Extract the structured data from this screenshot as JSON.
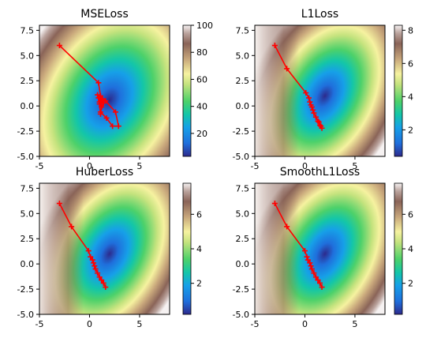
{
  "chart_data": [
    {
      "type": "heatmap",
      "title": "MSELoss",
      "xlim": [
        -5,
        8
      ],
      "ylim": [
        -5,
        8
      ],
      "xticks": [
        -5,
        0,
        5
      ],
      "yticks": [
        -5.0,
        -2.5,
        0.0,
        2.5,
        5.0,
        7.5
      ],
      "colorbar": {
        "range": [
          3,
          100
        ],
        "ticks": [
          20,
          40,
          60,
          80,
          100
        ]
      },
      "center": [
        2.0,
        0.6
      ],
      "path_color": "#ff0000",
      "path": [
        [
          -3,
          6
        ],
        [
          0.9,
          2.3
        ],
        [
          1.1,
          1.0
        ],
        [
          1.3,
          0.7
        ],
        [
          1.0,
          0.4
        ],
        [
          1.2,
          -0.1
        ],
        [
          0.9,
          0.8
        ],
        [
          1.4,
          0.3
        ],
        [
          1.1,
          -0.6
        ],
        [
          1.7,
          -1.2
        ],
        [
          2.3,
          -2.0
        ],
        [
          2.9,
          -2.0
        ],
        [
          2.6,
          -0.6
        ],
        [
          1.6,
          0.5
        ],
        [
          0.8,
          1.1
        ],
        [
          1.0,
          0.2
        ],
        [
          1.1,
          -0.8
        ]
      ]
    },
    {
      "type": "heatmap",
      "title": "L1Loss",
      "xlim": [
        -5,
        8
      ],
      "ylim": [
        -5,
        8
      ],
      "xticks": [
        -5,
        0,
        5
      ],
      "yticks": [
        -5.0,
        -2.5,
        0.0,
        2.5,
        5.0,
        7.5
      ],
      "colorbar": {
        "range": [
          0.4,
          8.3
        ],
        "ticks": [
          2,
          4,
          6,
          8
        ]
      },
      "center": [
        2.0,
        1.0
      ],
      "path_color": "#ff0000",
      "path": [
        [
          -3,
          6
        ],
        [
          -1.8,
          3.7
        ],
        [
          0.1,
          1.3
        ],
        [
          0.4,
          0.8
        ],
        [
          0.5,
          0.4
        ],
        [
          0.6,
          0.1
        ],
        [
          0.7,
          -0.1
        ],
        [
          0.8,
          -0.4
        ],
        [
          0.9,
          -0.7
        ],
        [
          1.1,
          -1.1
        ],
        [
          1.3,
          -1.5
        ],
        [
          1.5,
          -1.9
        ],
        [
          1.7,
          -2.2
        ],
        [
          1.6,
          -2.0
        ],
        [
          1.4,
          -1.6
        ]
      ]
    },
    {
      "type": "heatmap",
      "title": "HuberLoss",
      "xlim": [
        -5,
        8
      ],
      "ylim": [
        -5,
        8
      ],
      "xticks": [
        -5,
        0,
        5
      ],
      "yticks": [
        -5.0,
        -2.5,
        0.0,
        2.5,
        5.0,
        7.5
      ],
      "colorbar": {
        "range": [
          0.2,
          7.8
        ],
        "ticks": [
          2,
          4,
          6
        ]
      },
      "center": [
        2.0,
        1.0
      ],
      "path_color": "#ff0000",
      "path": [
        [
          -3,
          6
        ],
        [
          -1.8,
          3.7
        ],
        [
          -0.1,
          1.3
        ],
        [
          0.1,
          0.7
        ],
        [
          0.3,
          0.4
        ],
        [
          0.4,
          0.1
        ],
        [
          0.5,
          -0.2
        ],
        [
          0.6,
          -0.5
        ],
        [
          0.8,
          -0.9
        ],
        [
          1.0,
          -1.3
        ],
        [
          1.2,
          -1.6
        ],
        [
          1.4,
          -1.9
        ],
        [
          1.6,
          -2.3
        ]
      ]
    },
    {
      "type": "heatmap",
      "title": "SmoothL1Loss",
      "xlim": [
        -5,
        8
      ],
      "ylim": [
        -5,
        8
      ],
      "xticks": [
        -5,
        0,
        5
      ],
      "yticks": [
        -5.0,
        -2.5,
        0.0,
        2.5,
        5.0,
        7.5
      ],
      "colorbar": {
        "range": [
          0.2,
          7.8
        ],
        "ticks": [
          2,
          4,
          6
        ]
      },
      "center": [
        2.0,
        1.0
      ],
      "path_color": "#ff0000",
      "path": [
        [
          -3,
          6
        ],
        [
          -1.8,
          3.7
        ],
        [
          0.0,
          1.3
        ],
        [
          0.2,
          0.7
        ],
        [
          0.3,
          0.4
        ],
        [
          0.5,
          0.1
        ],
        [
          0.6,
          -0.2
        ],
        [
          0.7,
          -0.5
        ],
        [
          0.9,
          -0.9
        ],
        [
          1.1,
          -1.3
        ],
        [
          1.3,
          -1.6
        ],
        [
          1.5,
          -1.9
        ],
        [
          1.7,
          -2.3
        ]
      ]
    }
  ]
}
